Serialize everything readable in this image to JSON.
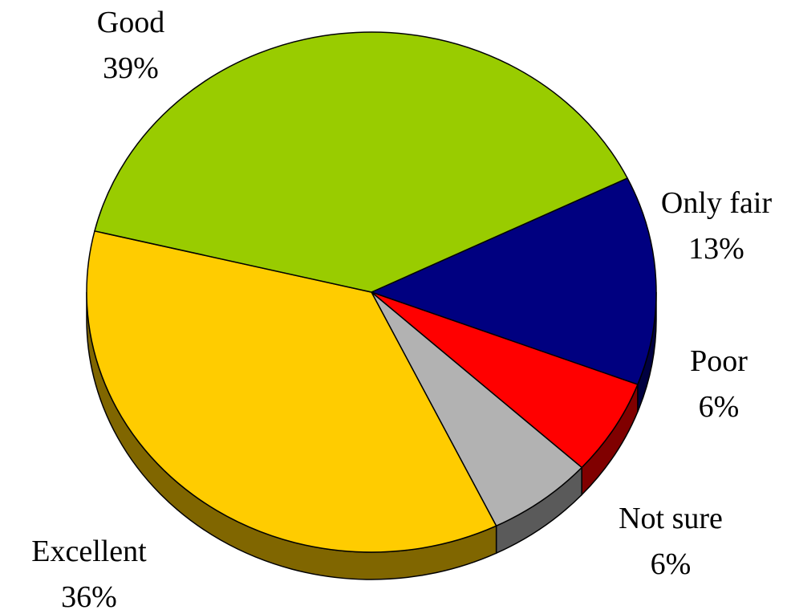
{
  "chart_data": {
    "type": "pie",
    "title": "",
    "start_slice": "Only fair",
    "direction": "clockwise",
    "three_d": true,
    "slices": [
      {
        "label": "Only fair",
        "value": 13,
        "value_label": "13%",
        "color": "#000080",
        "side_color": "#000040"
      },
      {
        "label": "Poor",
        "value": 6,
        "value_label": "6%",
        "color": "#ff0000",
        "side_color": "#800000"
      },
      {
        "label": "Not sure",
        "value": 6,
        "value_label": "6%",
        "color": "#b2b2b2",
        "side_color": "#5a5a5a"
      },
      {
        "label": "Excellent",
        "value": 36,
        "value_label": "36%",
        "color": "#ffcc00",
        "side_color": "#806600"
      },
      {
        "label": "Good",
        "value": 39,
        "value_label": "39%",
        "color": "#99cc00",
        "side_color": "#4d6600"
      }
    ]
  }
}
